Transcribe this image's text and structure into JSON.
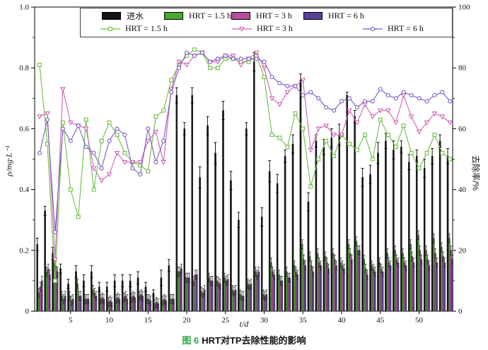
{
  "figure": {
    "caption": {
      "prefix": "图 6",
      "text": "HRT对TP去除性能的影响",
      "prefix_color": "#2ea64e"
    },
    "axes": {
      "left_label": "ρ/mg·L⁻¹",
      "right_label": "去除率/%",
      "x_label": "t/d"
    }
  },
  "legend": {
    "bars": [
      {
        "label": "进水",
        "color": "#141414"
      },
      {
        "label": "HRT = 1.5 h",
        "color": "#49a82f"
      },
      {
        "label": "HRT = 3 h",
        "color": "#b1509e"
      },
      {
        "label": "HRT = 6 h",
        "color": "#5c3f96"
      }
    ],
    "lines": [
      {
        "label": "HRT = 1.5 h",
        "color": "#6fbf44",
        "marker": "square"
      },
      {
        "label": "HRT = 3 h",
        "color": "#cf63b5",
        "marker": "triangle-down"
      },
      {
        "label": "HRT = 6 h",
        "color": "#7659c1",
        "marker": "circle"
      }
    ]
  },
  "chart_data": {
    "type": "bar+line combo (grouped bars with error bars on left axis, marker lines on right axis)",
    "title": "图 6 HRT对TP去除性能的影响",
    "xlabel": "t/d",
    "ylabel_left": "ρ/mg·L⁻¹",
    "ylabel_right": "去除率/%",
    "x_range": [
      0.5,
      54.5
    ],
    "ylim_left": [
      0,
      1.0
    ],
    "ylim_right": [
      0,
      100
    ],
    "x_ticks": [
      5,
      10,
      15,
      20,
      25,
      30,
      35,
      40,
      45,
      50
    ],
    "y_left_ticks": [
      "0",
      "0.2",
      "0.4",
      "0.6",
      "0.8",
      "1.0"
    ],
    "y_right_ticks": [
      "0",
      "20",
      "40",
      "60",
      "80",
      "100"
    ],
    "grid": false,
    "legend_position": "top-inside-border",
    "x": [
      1,
      2,
      3,
      4,
      5,
      6,
      7,
      8,
      9,
      10,
      11,
      12,
      13,
      14,
      15,
      16,
      17,
      18,
      19,
      20,
      21,
      22,
      23,
      24,
      25,
      26,
      27,
      28,
      29,
      30,
      31,
      32,
      33,
      34,
      35,
      36,
      37,
      38,
      39,
      40,
      41,
      42,
      43,
      44,
      45,
      46,
      47,
      48,
      49,
      50,
      51,
      52,
      53,
      54
    ],
    "bar_series": [
      {
        "name": "进水",
        "axis": "left",
        "color": "#141414",
        "values": [
          0.22,
          0.33,
          0.19,
          0.14,
          0.09,
          0.13,
          0.1,
          0.13,
          0.08,
          0.08,
          0.1,
          0.1,
          0.1,
          0.11,
          0.08,
          0.06,
          0.11,
          0.15,
          0.71,
          0.6,
          0.71,
          0.44,
          0.61,
          0.52,
          0.66,
          0.43,
          0.3,
          0.6,
          0.82,
          0.31,
          0.46,
          0.42,
          0.51,
          0.55,
          0.76,
          0.36,
          0.56,
          0.54,
          0.57,
          0.58,
          0.71,
          0.64,
          0.44,
          0.45,
          0.52,
          0.56,
          0.53,
          0.54,
          0.49,
          0.51,
          0.47,
          0.51,
          0.56,
          0.51
        ],
        "errors": [
          0.02,
          0.015,
          0.02,
          0.015,
          0.015,
          0.02,
          0.02,
          0.02,
          0.015,
          0.015,
          0.02,
          0.02,
          0.02,
          0.02,
          0.015,
          0.01,
          0.025,
          0.02,
          0.025,
          0.02,
          0.025,
          0.035,
          0.03,
          0.035,
          0.03,
          0.03,
          0.025,
          0.02,
          0.03,
          0.03,
          0.035,
          0.03,
          0.02,
          0.03,
          0.02,
          0.03,
          0.02,
          0.025,
          0.03,
          0.035,
          0.01,
          0.02,
          0.03,
          0.03,
          0.035,
          0.025,
          0.03,
          0.02,
          0.025,
          0.02,
          0.03,
          0.025,
          0.02,
          0.025
        ]
      },
      {
        "name": "HRT = 1.5 h",
        "axis": "left",
        "color": "#49a82f",
        "values": [
          0.06,
          0.13,
          0.16,
          0.05,
          0.05,
          0.09,
          0.04,
          0.07,
          0.04,
          0.03,
          0.04,
          0.045,
          0.045,
          0.05,
          0.04,
          0.025,
          0.035,
          0.04,
          0.13,
          0.11,
          0.1,
          0.065,
          0.11,
          0.1,
          0.11,
          0.07,
          0.055,
          0.09,
          0.13,
          0.055,
          0.16,
          0.12,
          0.13,
          0.15,
          0.22,
          0.18,
          0.19,
          0.18,
          0.19,
          0.16,
          0.22,
          0.23,
          0.17,
          0.15,
          0.16,
          0.19,
          0.2,
          0.19,
          0.22,
          0.25,
          0.2,
          0.24,
          0.21,
          0.24
        ],
        "errors_uniform": 0.015
      },
      {
        "name": "HRT = 3 h",
        "axis": "left",
        "color": "#b1509e",
        "values": [
          0.08,
          0.14,
          0.15,
          0.04,
          0.035,
          0.05,
          0.04,
          0.06,
          0.045,
          0.035,
          0.045,
          0.05,
          0.05,
          0.055,
          0.04,
          0.03,
          0.04,
          0.04,
          0.13,
          0.11,
          0.12,
          0.06,
          0.1,
          0.095,
          0.1,
          0.065,
          0.05,
          0.085,
          0.12,
          0.05,
          0.13,
          0.1,
          0.11,
          0.13,
          0.17,
          0.15,
          0.16,
          0.16,
          0.17,
          0.15,
          0.19,
          0.2,
          0.14,
          0.14,
          0.14,
          0.16,
          0.17,
          0.16,
          0.18,
          0.2,
          0.17,
          0.19,
          0.18,
          0.2
        ],
        "errors_uniform": 0.015
      },
      {
        "name": "HRT = 6 h",
        "axis": "left",
        "color": "#5c3f96",
        "values": [
          0.1,
          0.12,
          0.13,
          0.05,
          0.04,
          0.05,
          0.04,
          0.05,
          0.04,
          0.03,
          0.04,
          0.04,
          0.045,
          0.05,
          0.035,
          0.025,
          0.035,
          0.04,
          0.14,
          0.11,
          0.12,
          0.07,
          0.1,
          0.09,
          0.105,
          0.07,
          0.05,
          0.09,
          0.13,
          0.055,
          0.12,
          0.1,
          0.11,
          0.12,
          0.15,
          0.13,
          0.15,
          0.14,
          0.15,
          0.14,
          0.17,
          0.2,
          0.12,
          0.13,
          0.13,
          0.15,
          0.16,
          0.15,
          0.16,
          0.17,
          0.15,
          0.16,
          0.16,
          0.17
        ],
        "errors_uniform": 0.015
      }
    ],
    "line_series": [
      {
        "name": "HRT = 1.5 h",
        "axis": "right",
        "color": "#6fbf44",
        "marker": "square",
        "values": [
          81,
          55,
          10,
          62,
          40,
          31,
          63,
          40,
          56,
          62,
          58,
          52,
          49,
          48,
          46,
          64,
          66,
          76,
          81,
          84,
          86,
          85,
          80,
          80,
          83,
          83,
          82,
          82,
          84,
          77,
          58,
          57,
          54,
          65,
          60,
          41,
          50,
          56,
          51,
          58,
          55,
          53,
          58,
          50,
          63,
          58,
          54,
          61,
          52,
          47,
          52,
          58,
          52,
          50
        ]
      },
      {
        "name": "HRT = 3 h",
        "axis": "right",
        "color": "#cf63b5",
        "marker": "triangle-down",
        "values": [
          64,
          65,
          17,
          73,
          62,
          61,
          60,
          47,
          43,
          45,
          52,
          49,
          49,
          49,
          56,
          59,
          49,
          73,
          82,
          81,
          84,
          85,
          82,
          82,
          84,
          84,
          81,
          83,
          85,
          80,
          70,
          68,
          72,
          74,
          76,
          53,
          60,
          61,
          58,
          58,
          66,
          62,
          68,
          64,
          66,
          66,
          62,
          71,
          64,
          59,
          62,
          65,
          64,
          62
        ]
      },
      {
        "name": "HRT = 6 h",
        "axis": "right",
        "color": "#7659c1",
        "marker": "circle",
        "values": [
          52,
          63,
          26,
          60,
          56,
          61,
          54,
          52,
          47,
          56,
          60,
          58,
          47,
          45,
          60,
          49,
          56,
          72,
          80,
          85,
          84,
          85,
          82,
          83,
          84,
          83,
          83,
          83,
          83,
          82,
          77,
          75,
          74,
          74,
          71,
          72,
          70,
          67,
          66,
          69,
          70,
          67,
          69,
          69,
          73,
          71,
          70,
          72,
          71,
          70,
          69,
          71,
          72,
          69
        ]
      }
    ]
  }
}
